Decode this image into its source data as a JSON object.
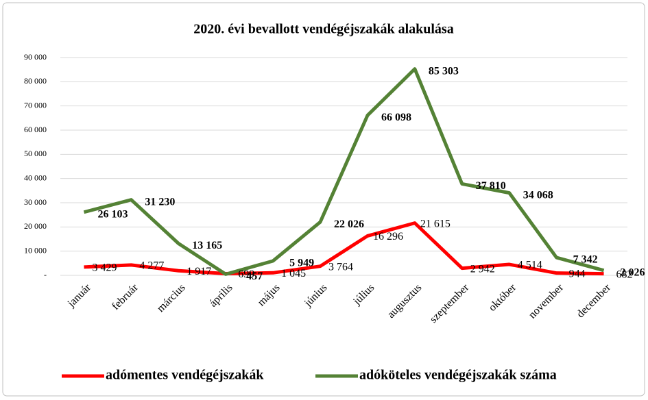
{
  "chart_data": {
    "type": "line",
    "title": "2020. évi bevallott vendégéjszakák alakulása",
    "categories": [
      "január",
      "február",
      "március",
      "április",
      "május",
      "június",
      "július",
      "augusztus",
      "szeptember",
      "október",
      "november",
      "december"
    ],
    "series": [
      {
        "name": "adómentes vendégéjszakák",
        "color": "#ff0000",
        "values": [
          3429,
          4277,
          1917,
          699,
          1045,
          3764,
          16296,
          21615,
          2942,
          4514,
          944,
          682
        ],
        "value_labels": [
          "3 429",
          "4 277",
          "1 917",
          "699",
          "1 045",
          "3 764",
          "16 296",
          "21 615",
          "2 942",
          "4 514",
          "944",
          "682"
        ]
      },
      {
        "name": "adóköteles vendégéjszakák száma",
        "color": "#548235",
        "values": [
          26103,
          31230,
          13165,
          457,
          5949,
          22026,
          66098,
          85303,
          37810,
          34068,
          7342,
          2026
        ],
        "value_labels": [
          "26 103",
          "31 230",
          "13 165",
          "457",
          "5 949",
          "22 026",
          "66 098",
          "85 303",
          "37 810",
          "34 068",
          "7 342",
          "2 026"
        ]
      }
    ],
    "ylim": [
      0,
      90000
    ],
    "yticks": [
      {
        "value": 0,
        "label": "-"
      },
      {
        "value": 10000,
        "label": "10 000"
      },
      {
        "value": 20000,
        "label": "20 000"
      },
      {
        "value": 30000,
        "label": "30 000"
      },
      {
        "value": 40000,
        "label": "40 000"
      },
      {
        "value": 50000,
        "label": "50 000"
      },
      {
        "value": 60000,
        "label": "60 000"
      },
      {
        "value": 70000,
        "label": "70 000"
      },
      {
        "value": 80000,
        "label": "80 000"
      },
      {
        "value": 90000,
        "label": "90 000"
      }
    ],
    "grid": true,
    "legend": "bottom"
  }
}
